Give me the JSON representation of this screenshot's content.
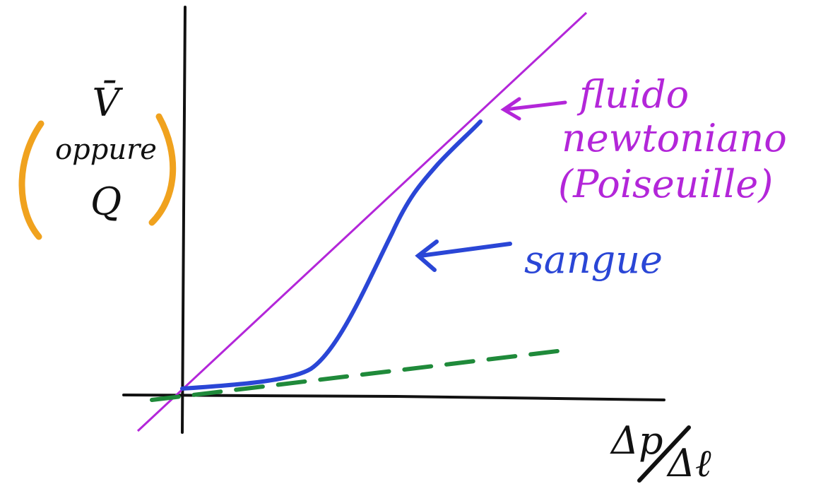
{
  "y_axis_label": {
    "symbol": "V̄",
    "conjunction": "oppure",
    "alternative": "Q"
  },
  "x_axis_label": {
    "numerator": "Δp",
    "denominator": "Δℓ"
  },
  "annotations": [
    {
      "lines": [
        "fluido",
        "newtoniano",
        "(Poiseuille)"
      ]
    },
    {
      "lines": [
        "sangue"
      ]
    }
  ]
}
